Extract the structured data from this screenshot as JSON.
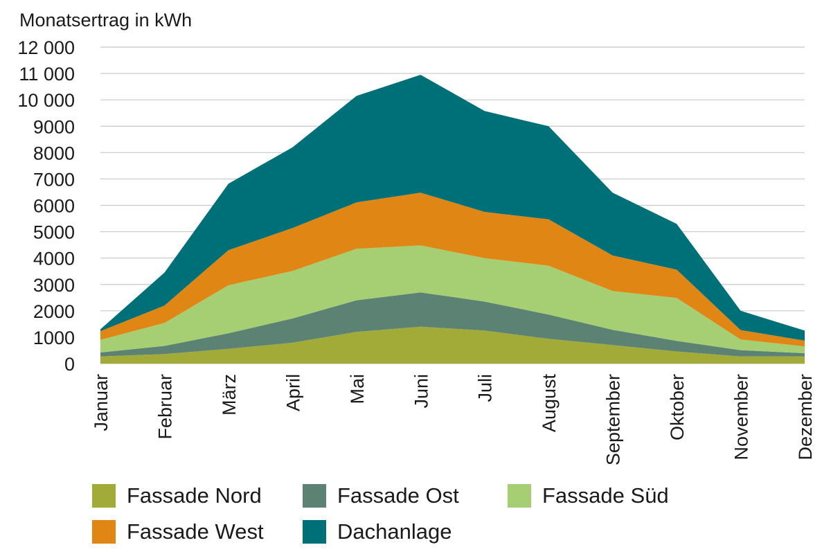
{
  "chart_data": {
    "type": "area",
    "stacked": true,
    "title": "",
    "ylabel": "Monatsertrag in kWh",
    "xlabel": "",
    "ylim": [
      0,
      12000
    ],
    "yticks": [
      0,
      1000,
      2000,
      3000,
      4000,
      5000,
      6000,
      7000,
      8000,
      9000,
      10000,
      11000,
      12000
    ],
    "ytick_labels": [
      "0",
      "1000",
      "2000",
      "3000",
      "4000",
      "5000",
      "6000",
      "7000",
      "8000",
      "9000",
      "10 000",
      "11 000",
      "12 000"
    ],
    "grid": true,
    "categories": [
      "Januar",
      "Februar",
      "März",
      "April",
      "Mai",
      "Juni",
      "Juli",
      "August",
      "September",
      "Oktober",
      "November",
      "Dezember"
    ],
    "series": [
      {
        "name": "Fassade Nord",
        "color": "#a3ab38",
        "values": [
          270,
          360,
          560,
          790,
          1200,
          1400,
          1250,
          940,
          700,
          460,
          270,
          270
        ]
      },
      {
        "name": "Fassade Ost",
        "color": "#5c8273",
        "values": [
          150,
          310,
          590,
          920,
          1200,
          1300,
          1100,
          920,
          580,
          400,
          240,
          120
        ]
      },
      {
        "name": "Fassade Süd",
        "color": "#a6cf74",
        "values": [
          480,
          870,
          1820,
          1800,
          1950,
          1780,
          1650,
          1850,
          1470,
          1630,
          400,
          260
        ]
      },
      {
        "name": "Fassade West",
        "color": "#e08614",
        "values": [
          330,
          660,
          1330,
          1630,
          1760,
          2000,
          1750,
          1760,
          1350,
          1070,
          360,
          220
        ]
      },
      {
        "name": "Dachanlage",
        "color": "#007078",
        "values": [
          70,
          1250,
          2520,
          3060,
          4040,
          4470,
          3830,
          3530,
          2380,
          1740,
          730,
          380
        ]
      }
    ],
    "legend": {
      "position": "bottom",
      "columns": 3
    }
  }
}
